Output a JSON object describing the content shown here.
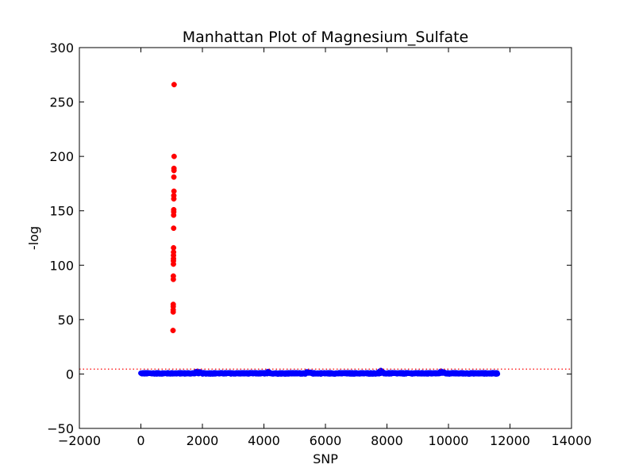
{
  "chart_data": {
    "type": "scatter",
    "title": "Manhattan Plot of Magnesium_Sulfate",
    "xlabel": "SNP",
    "ylabel": "-log",
    "xlim": [
      -2000,
      14000
    ],
    "ylim": [
      -50,
      300
    ],
    "xticks": [
      -2000,
      0,
      2000,
      4000,
      6000,
      8000,
      10000,
      12000,
      14000
    ],
    "yticks": [
      -50,
      0,
      50,
      100,
      150,
      200,
      250,
      300
    ],
    "grid": false,
    "threshold": {
      "y": 4.5,
      "color": "#ff0000",
      "style": "dotted"
    },
    "colors": {
      "significant": "#ff0000",
      "background": "#0000ff"
    },
    "series": [
      {
        "color": "#ff0000",
        "points": [
          {
            "x": 1080,
            "y": 266
          },
          {
            "x": 1080,
            "y": 200
          },
          {
            "x": 1075,
            "y": 189
          },
          {
            "x": 1075,
            "y": 187
          },
          {
            "x": 1072,
            "y": 181
          },
          {
            "x": 1075,
            "y": 168
          },
          {
            "x": 1070,
            "y": 164
          },
          {
            "x": 1070,
            "y": 161
          },
          {
            "x": 1068,
            "y": 151
          },
          {
            "x": 1068,
            "y": 149
          },
          {
            "x": 1065,
            "y": 146
          },
          {
            "x": 1065,
            "y": 134
          },
          {
            "x": 1062,
            "y": 116
          },
          {
            "x": 1062,
            "y": 112
          },
          {
            "x": 1060,
            "y": 109
          },
          {
            "x": 1060,
            "y": 106
          },
          {
            "x": 1058,
            "y": 104
          },
          {
            "x": 1058,
            "y": 101
          },
          {
            "x": 1055,
            "y": 90
          },
          {
            "x": 1055,
            "y": 87
          },
          {
            "x": 1052,
            "y": 64
          },
          {
            "x": 1052,
            "y": 62
          },
          {
            "x": 1050,
            "y": 59
          },
          {
            "x": 1050,
            "y": 57
          },
          {
            "x": 1045,
            "y": 40
          }
        ]
      },
      {
        "color": "#0000ff",
        "x_range": [
          0,
          11600
        ],
        "bumps": [
          {
            "x": 1850,
            "y": 2.5
          },
          {
            "x": 4150,
            "y": 1.5
          },
          {
            "x": 5450,
            "y": 1.5
          },
          {
            "x": 7800,
            "y": 2.5
          },
          {
            "x": 9800,
            "y": 2.5
          }
        ]
      }
    ]
  }
}
